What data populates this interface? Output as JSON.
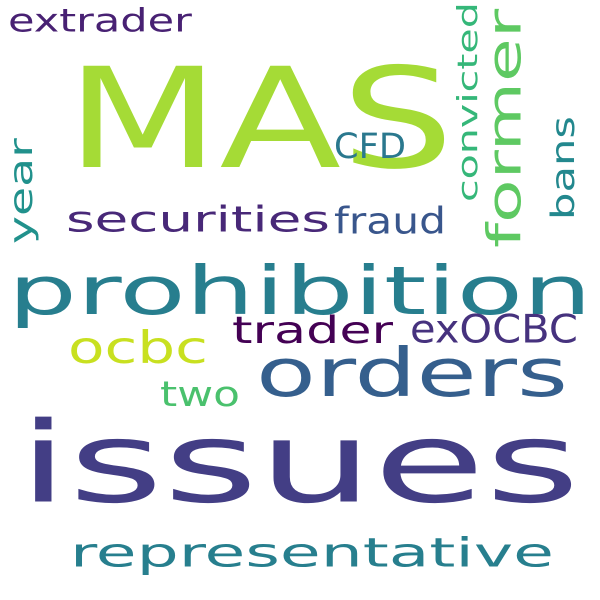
{
  "words": [
    {
      "text": "MAS",
      "color": "#a5db36",
      "orientation": "horizontal"
    },
    {
      "text": "issues",
      "color": "#433e85",
      "orientation": "horizontal"
    },
    {
      "text": "prohibition",
      "color": "#277e8e",
      "orientation": "horizontal"
    },
    {
      "text": "orders",
      "color": "#355f8d",
      "orientation": "horizontal"
    },
    {
      "text": "representative",
      "color": "#277f8e",
      "orientation": "horizontal"
    },
    {
      "text": "former",
      "color": "#5ec962",
      "orientation": "vertical"
    },
    {
      "text": "securities",
      "color": "#482878",
      "orientation": "horizontal"
    },
    {
      "text": "ocbc",
      "color": "#c8e020",
      "orientation": "horizontal"
    },
    {
      "text": "trader",
      "color": "#440154",
      "orientation": "horizontal"
    },
    {
      "text": "exOCBC",
      "color": "#46327e",
      "orientation": "horizontal"
    },
    {
      "text": "extrader",
      "color": "#482173",
      "orientation": "horizontal"
    },
    {
      "text": "convicted",
      "color": "#35b779",
      "orientation": "vertical"
    },
    {
      "text": "CFD",
      "color": "#2a788e",
      "orientation": "horizontal"
    },
    {
      "text": "fraud",
      "color": "#39568c",
      "orientation": "horizontal"
    },
    {
      "text": "year",
      "color": "#21918c",
      "orientation": "vertical"
    },
    {
      "text": "bans",
      "color": "#23888e",
      "orientation": "vertical"
    },
    {
      "text": "two",
      "color": "#4ac16d",
      "orientation": "horizontal"
    }
  ]
}
